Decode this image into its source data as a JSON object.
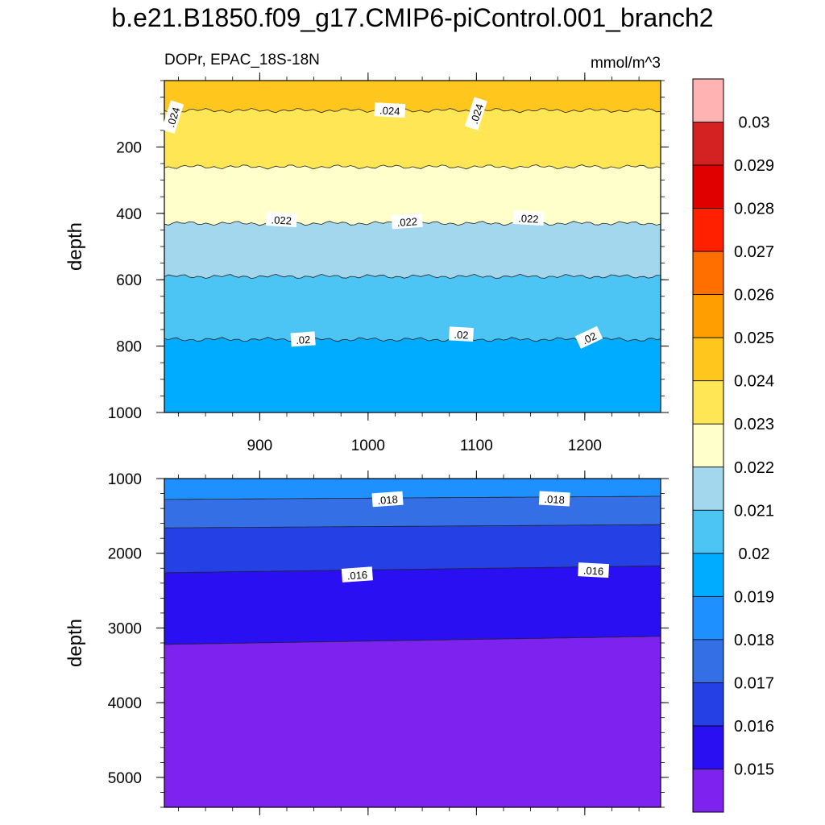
{
  "title": "b.e21.B1850.f09_g17.CMIP6-piControl.001_branch2",
  "chart_data": {
    "type": "contour",
    "variable_label": "DOPr, EPAC_18S-18N",
    "units": "mmol/m^3",
    "levels": [
      0.015,
      0.016,
      0.017,
      0.018,
      0.019,
      0.02,
      0.021,
      0.022,
      0.023,
      0.024,
      0.025,
      0.026,
      0.027,
      0.028,
      0.029,
      0.03
    ],
    "colorbar_labels": [
      "0.015",
      "0.016",
      "0.017",
      "0.018",
      "0.019",
      "0.02",
      "0.021",
      "0.022",
      "0.023",
      "0.024",
      "0.025",
      "0.026",
      "0.027",
      "0.028",
      "0.029",
      "0.03"
    ],
    "colors": [
      "#7d22ef",
      "#2a0ff2",
      "#2541e6",
      "#356fe6",
      "#1e90ff",
      "#00acff",
      "#4cc5f5",
      "#a3d7ee",
      "#ffffcc",
      "#ffe655",
      "#ffc61e",
      "#ff9e00",
      "#ff6f00",
      "#ff2000",
      "#e00000",
      "#d42222",
      "#ffb3b3"
    ],
    "x_range": [
      812,
      1270
    ],
    "x_ticks": [
      900,
      1000,
      1100,
      1200
    ],
    "x_tick_labels": [
      "900",
      "1000",
      "1100",
      "1200"
    ],
    "panels": [
      {
        "ylabel": "depth",
        "ylim": [
          0,
          1000
        ],
        "y_ticks": [
          200,
          400,
          600,
          800,
          1000
        ],
        "y_tick_labels": [
          "200",
          "400",
          "600",
          "800",
          "1000"
        ],
        "bands": [
          {
            "from": 0,
            "to": 90,
            "value": 0.0245
          },
          {
            "from": 90,
            "to": 260,
            "value": 0.0235
          },
          {
            "from": 260,
            "to": 430,
            "value": 0.0225
          },
          {
            "from": 430,
            "to": 590,
            "value": 0.0215
          },
          {
            "from": 590,
            "to": 780,
            "value": 0.0205
          },
          {
            "from": 780,
            "to": 1000,
            "value": 0.0195
          }
        ],
        "contour_labels": [
          {
            "text": ".024",
            "x": 820,
            "y": 110
          },
          {
            "text": ".024",
            "x": 1020,
            "y": 90
          },
          {
            "text": ".024",
            "x": 1100,
            "y": 100
          },
          {
            "text": ".022",
            "x": 920,
            "y": 420
          },
          {
            "text": ".022",
            "x": 1036,
            "y": 425
          },
          {
            "text": ".022",
            "x": 1148,
            "y": 415
          },
          {
            "text": ".02",
            "x": 940,
            "y": 780
          },
          {
            "text": ".02",
            "x": 1086,
            "y": 765
          },
          {
            "text": ".02",
            "x": 1204,
            "y": 775
          }
        ]
      },
      {
        "ylabel": "depth",
        "ylim": [
          1000,
          5400
        ],
        "y_ticks": [
          1000,
          2000,
          3000,
          4000,
          5000
        ],
        "y_tick_labels": [
          "1000",
          "2000",
          "3000",
          "4000",
          "5000"
        ],
        "bands": [
          {
            "from": 1000,
            "to": 1280,
            "value": 0.0185
          },
          {
            "from": 1280,
            "to": 1660,
            "value": 0.0175
          },
          {
            "from": 1660,
            "to": 2260,
            "value": 0.0165
          },
          {
            "from": 2260,
            "to": 3220,
            "value": 0.0155
          },
          {
            "from": 3220,
            "to": 5400,
            "value": 0.0145
          }
        ],
        "contour_labels": [
          {
            "text": ".018",
            "x": 1018,
            "y": 1280
          },
          {
            "text": ".018",
            "x": 1172,
            "y": 1275
          },
          {
            "text": ".016",
            "x": 990,
            "y": 2290
          },
          {
            "text": ".016",
            "x": 1208,
            "y": 2230
          }
        ]
      }
    ]
  }
}
